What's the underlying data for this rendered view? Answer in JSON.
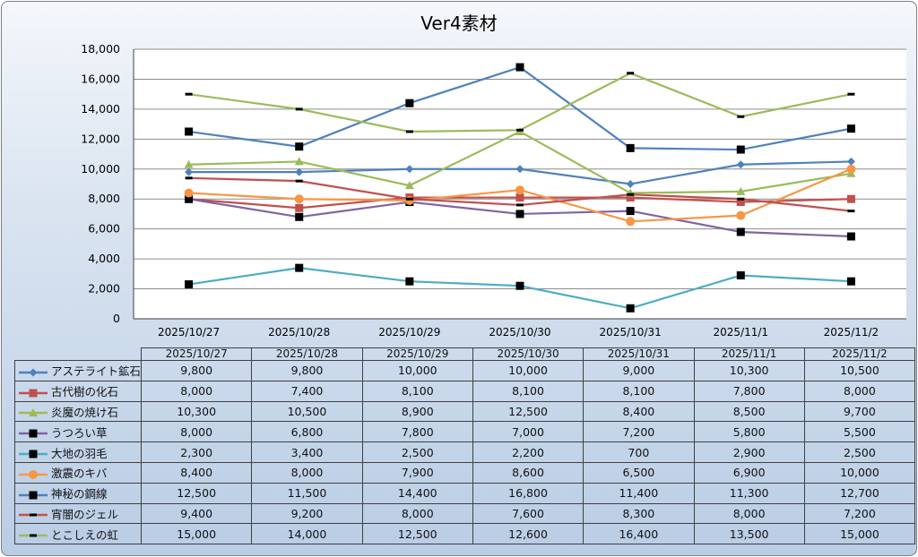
{
  "chart_data": {
    "type": "line",
    "title": "Ver4素材",
    "categories": [
      "2025/10/27",
      "2025/10/28",
      "2025/10/29",
      "2025/10/30",
      "2025/10/31",
      "2025/11/1",
      "2025/11/2"
    ],
    "ylim": [
      0,
      18000
    ],
    "yticks": [
      0,
      2000,
      4000,
      6000,
      8000,
      10000,
      12000,
      14000,
      16000,
      18000
    ],
    "ytick_labels": [
      "0",
      "2,000",
      "4,000",
      "6,000",
      "8,000",
      "10,000",
      "12,000",
      "14,000",
      "16,000",
      "18,000"
    ],
    "grid": true,
    "legend": "data-table",
    "series": [
      {
        "name": "アステライト鉱石",
        "color": "#4f81bd",
        "marker": "diamond",
        "values": [
          9800,
          9800,
          10000,
          10000,
          9000,
          10300,
          10500
        ],
        "labels": [
          "9,800",
          "9,800",
          "10,000",
          "10,000",
          "9,000",
          "10,300",
          "10,500"
        ]
      },
      {
        "name": "古代樹の化石",
        "color": "#c0504d",
        "marker": "square",
        "values": [
          8000,
          7400,
          8100,
          8100,
          8100,
          7800,
          8000
        ],
        "labels": [
          "8,000",
          "7,400",
          "8,100",
          "8,100",
          "8,100",
          "7,800",
          "8,000"
        ]
      },
      {
        "name": "炎魔の焼け石",
        "color": "#9bbb59",
        "marker": "triangle",
        "values": [
          10300,
          10500,
          8900,
          12500,
          8400,
          8500,
          9700
        ],
        "labels": [
          "10,300",
          "10,500",
          "8,900",
          "12,500",
          "8,400",
          "8,500",
          "9,700"
        ]
      },
      {
        "name": "うつろい草",
        "color": "#8064a2",
        "marker": "black-square",
        "values": [
          8000,
          6800,
          7800,
          7000,
          7200,
          5800,
          5500
        ],
        "labels": [
          "8,000",
          "6,800",
          "7,800",
          "7,000",
          "7,200",
          "5,800",
          "5,500"
        ]
      },
      {
        "name": "大地の羽毛",
        "color": "#4bacc6",
        "marker": "black-square",
        "values": [
          2300,
          3400,
          2500,
          2200,
          700,
          2900,
          2500
        ],
        "labels": [
          "2,300",
          "3,400",
          "2,500",
          "2,200",
          "700",
          "2,900",
          "2,500"
        ]
      },
      {
        "name": "激震のキバ",
        "color": "#f79646",
        "marker": "circle",
        "values": [
          8400,
          8000,
          7900,
          8600,
          6500,
          6900,
          10000
        ],
        "labels": [
          "8,400",
          "8,000",
          "7,900",
          "8,600",
          "6,500",
          "6,900",
          "10,000"
        ]
      },
      {
        "name": "神秘の鋼線",
        "color": "#4f81bd",
        "marker": "black-square",
        "values": [
          12500,
          11500,
          14400,
          16800,
          11400,
          11300,
          12700
        ],
        "labels": [
          "12,500",
          "11,500",
          "14,400",
          "16,800",
          "11,400",
          "11,300",
          "12,700"
        ]
      },
      {
        "name": "宵闇のジェル",
        "color": "#c0504d",
        "marker": "black-dash",
        "values": [
          9400,
          9200,
          8000,
          7600,
          8300,
          8000,
          7200
        ],
        "labels": [
          "9,400",
          "9,200",
          "8,000",
          "7,600",
          "8,300",
          "8,000",
          "7,200"
        ]
      },
      {
        "name": "とこしえの虹",
        "color": "#9bbb59",
        "marker": "black-dash",
        "values": [
          15000,
          14000,
          12500,
          12600,
          16400,
          13500,
          15000
        ],
        "labels": [
          "15,000",
          "14,000",
          "12,500",
          "12,600",
          "16,400",
          "13,500",
          "15,000"
        ]
      }
    ]
  }
}
